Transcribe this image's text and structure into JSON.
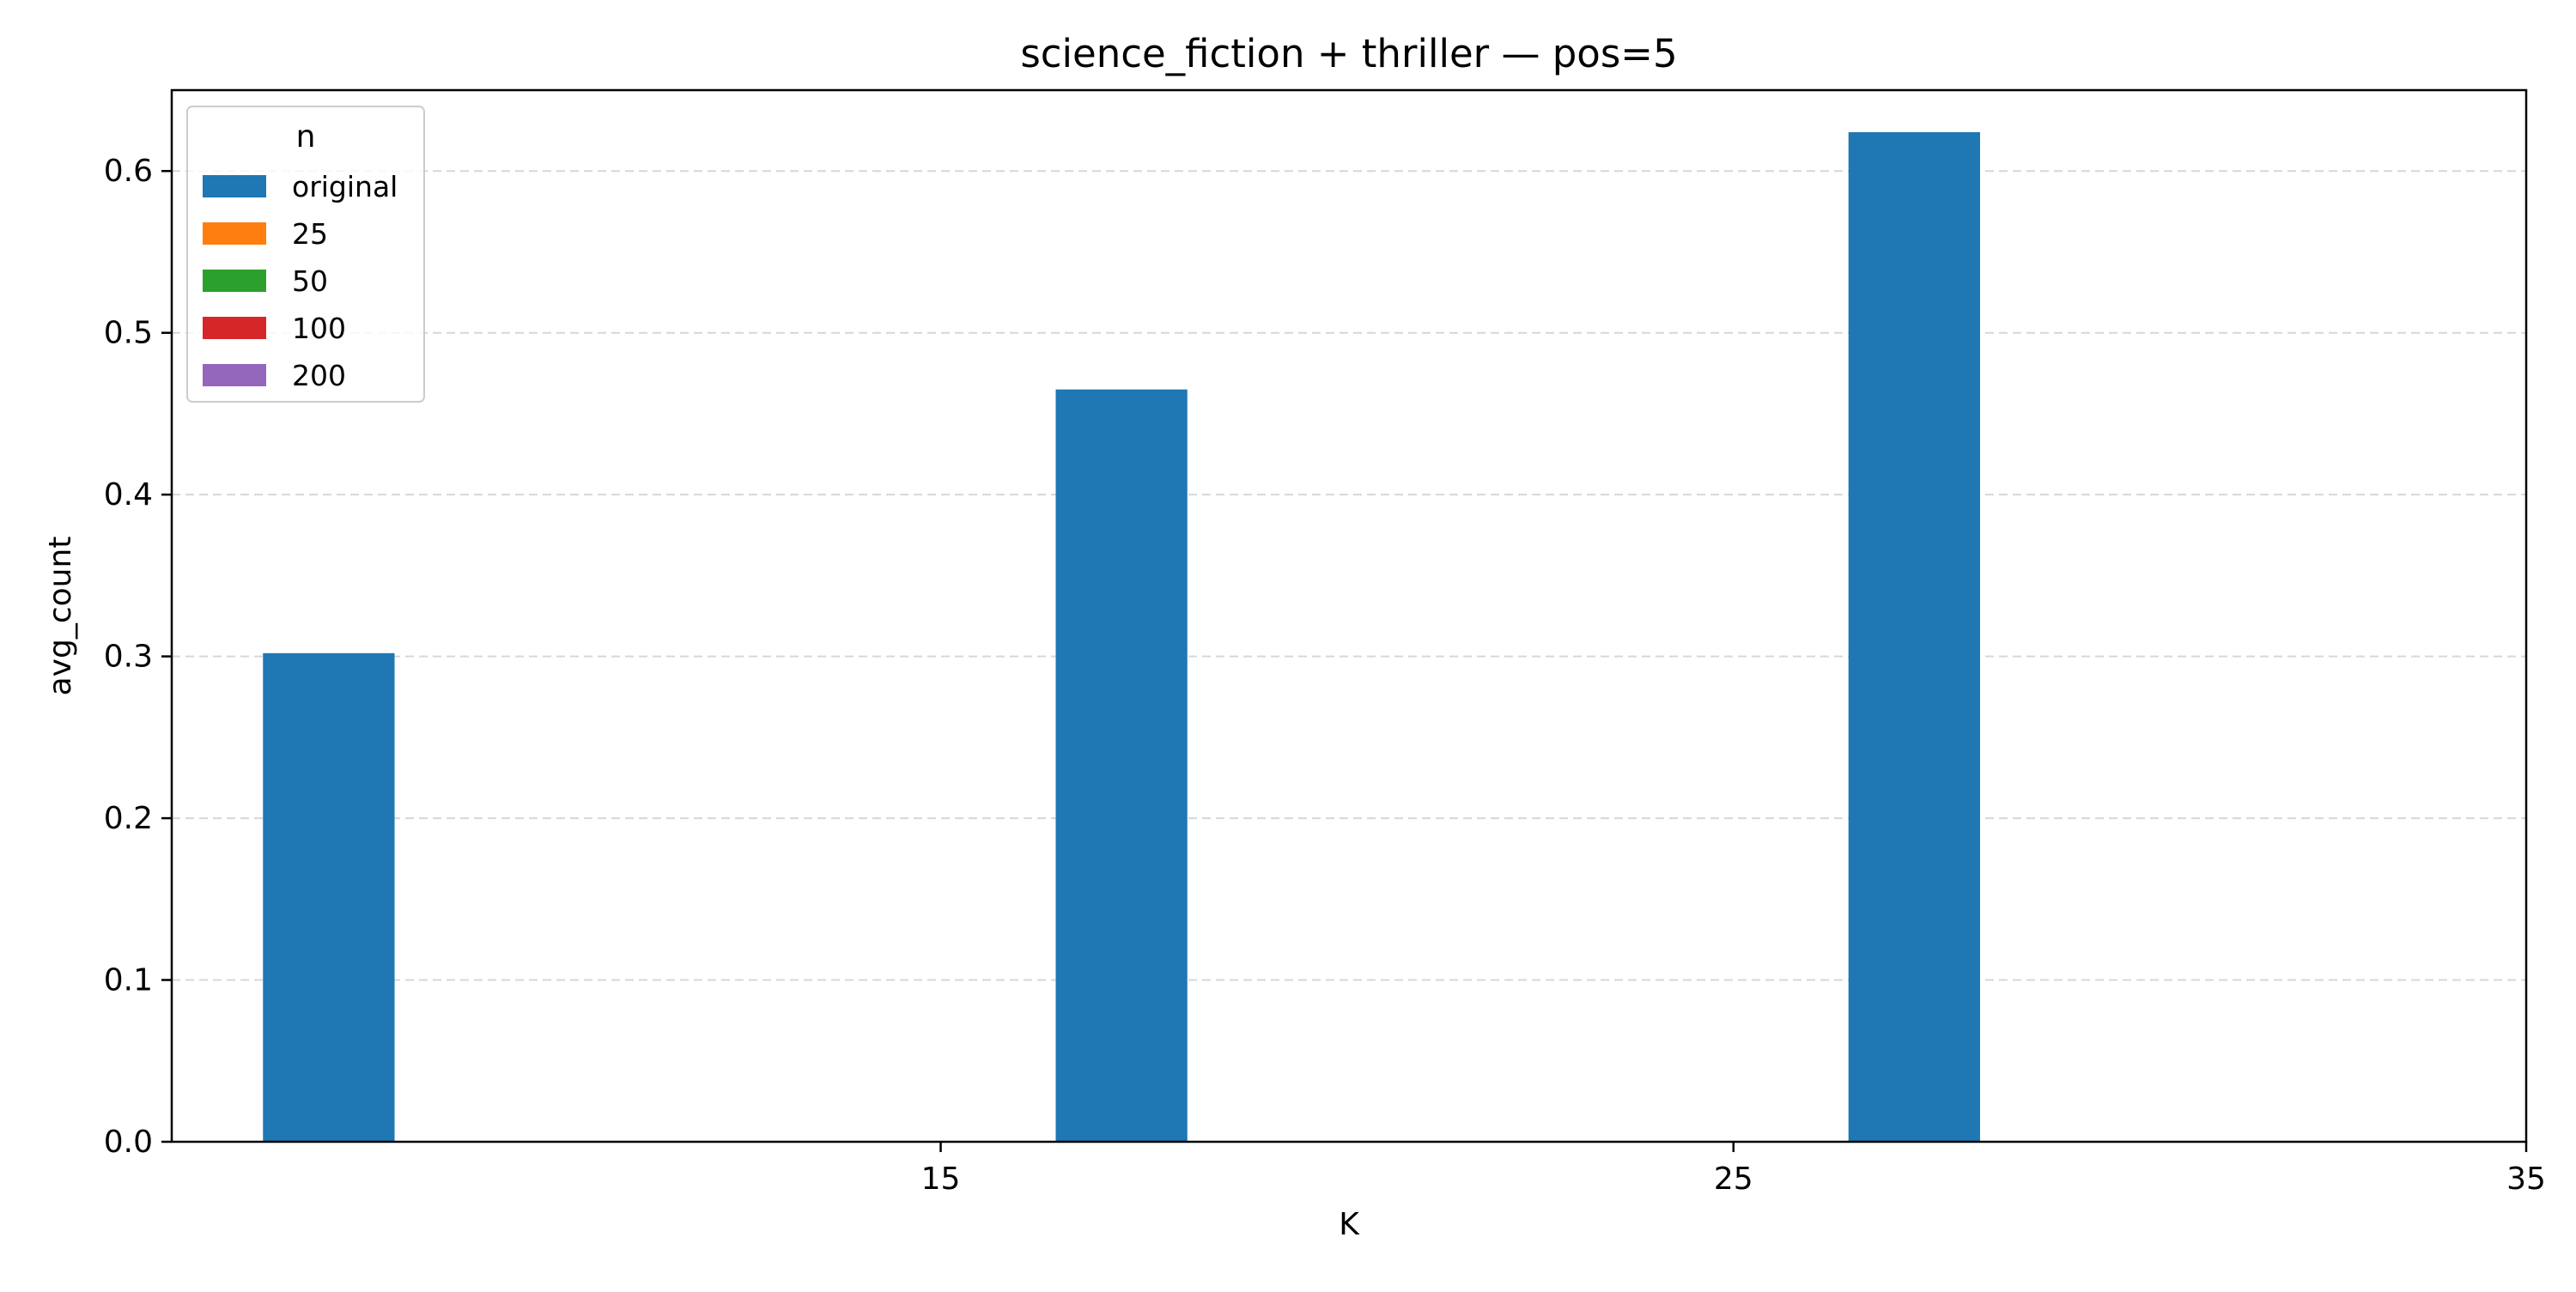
{
  "chart_data": {
    "type": "bar",
    "title": "science_fiction + thriller — pos=5",
    "xlabel": "K",
    "ylabel": "avg_count",
    "categories": [
      15,
      25,
      35
    ],
    "x_ticks": [
      "15",
      "25",
      "35"
    ],
    "y_ticks": [
      "0.0",
      "0.1",
      "0.2",
      "0.3",
      "0.4",
      "0.5",
      "0.6"
    ],
    "ylim": [
      0,
      0.65
    ],
    "grid": "y-dashed",
    "legend": {
      "title": "n",
      "placement": "top-left",
      "entries": [
        "original",
        "25",
        "50",
        "100",
        "200"
      ]
    },
    "series": [
      {
        "name": "original",
        "color": "#1f77b4",
        "values": [
          0.302,
          0.465,
          0.624
        ]
      },
      {
        "name": "25",
        "color": "#ff7f0e",
        "values": [
          null,
          null,
          null
        ]
      },
      {
        "name": "50",
        "color": "#2ca02c",
        "values": [
          null,
          null,
          null
        ]
      },
      {
        "name": "100",
        "color": "#d62728",
        "values": [
          null,
          null,
          null
        ]
      },
      {
        "name": "200",
        "color": "#9467bd",
        "values": [
          null,
          null,
          null
        ]
      }
    ]
  }
}
